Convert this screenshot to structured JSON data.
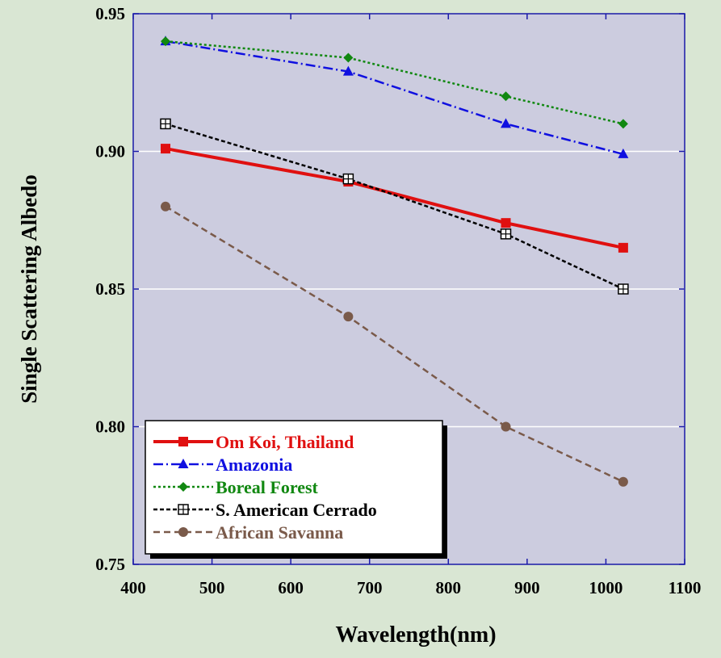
{
  "chart_data": {
    "type": "line",
    "xlabel": "Wavelength(nm)",
    "ylabel": "Single Scattering Albedo",
    "xlim": [
      400,
      1100
    ],
    "ylim": [
      0.75,
      0.95
    ],
    "x_ticks": [
      "400",
      "500",
      "600",
      "700",
      "800",
      "900",
      "1000",
      "1100"
    ],
    "y_ticks": [
      "0.75",
      "0.80",
      "0.85",
      "0.90",
      "0.95"
    ],
    "grid": "horizontal",
    "legend_position": "bottom-left",
    "plot_background": "#ccccdf",
    "series": [
      {
        "name": "Om Koi, Thailand",
        "color": "#e01010",
        "style": "solid",
        "marker": "square",
        "x": [
          441,
          673,
          873,
          1022
        ],
        "y": [
          0.901,
          0.889,
          0.874,
          0.865
        ]
      },
      {
        "name": "Amazonia",
        "color": "#1010e0",
        "style": "dashdot",
        "marker": "triangle",
        "x": [
          441,
          673,
          873,
          1022
        ],
        "y": [
          0.94,
          0.929,
          0.91,
          0.899
        ]
      },
      {
        "name": "Boreal Forest",
        "color": "#118811",
        "style": "dotted",
        "marker": "diamond",
        "x": [
          441,
          673,
          873,
          1022
        ],
        "y": [
          0.94,
          0.934,
          0.92,
          0.91
        ]
      },
      {
        "name": "S. American Cerrado",
        "color": "#000000",
        "style": "short-dash",
        "marker": "boxed-plus",
        "x": [
          441,
          673,
          873,
          1022
        ],
        "y": [
          0.91,
          0.89,
          0.87,
          0.85
        ]
      },
      {
        "name": "African Savanna",
        "color": "#7a5a4a",
        "style": "dashed",
        "marker": "circle",
        "x": [
          441,
          673,
          873,
          1022
        ],
        "y": [
          0.88,
          0.84,
          0.8,
          0.78
        ]
      }
    ]
  }
}
